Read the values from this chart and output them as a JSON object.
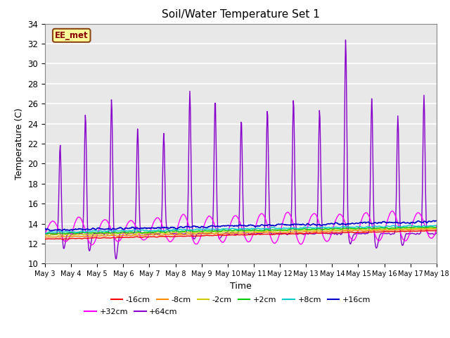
{
  "title": "Soil/Water Temperature Set 1",
  "xlabel": "Time",
  "ylabel": "Temperature (C)",
  "ylim": [
    10,
    34
  ],
  "xlim": [
    0,
    15
  ],
  "x_tick_labels": [
    "May 3",
    "May 4",
    "May 5",
    "May 6",
    "May 7",
    "May 8",
    "May 9",
    "May 10",
    "May 11",
    "May 12",
    "May 13",
    "May 14",
    "May 15",
    "May 16",
    "May 17",
    "May 18"
  ],
  "station_label": "EE_met",
  "station_box_facecolor": "#FFFF99",
  "station_box_edgecolor": "#8B4513",
  "bg_color": "#E8E8E8",
  "series": {
    "-16cm": {
      "color": "#FF0000"
    },
    "-8cm": {
      "color": "#FF8C00"
    },
    "-2cm": {
      "color": "#CCCC00"
    },
    "+2cm": {
      "color": "#00CC00"
    },
    "+8cm": {
      "color": "#00CCCC"
    },
    "+16cm": {
      "color": "#0000CC"
    },
    "+32cm": {
      "color": "#FF00FF"
    },
    "+64cm": {
      "color": "#8800CC"
    }
  },
  "legend_order": [
    "-16cm",
    "-8cm",
    "-2cm",
    "+2cm",
    "+8cm",
    "+16cm",
    "+32cm",
    "+64cm"
  ],
  "n_points": 720
}
